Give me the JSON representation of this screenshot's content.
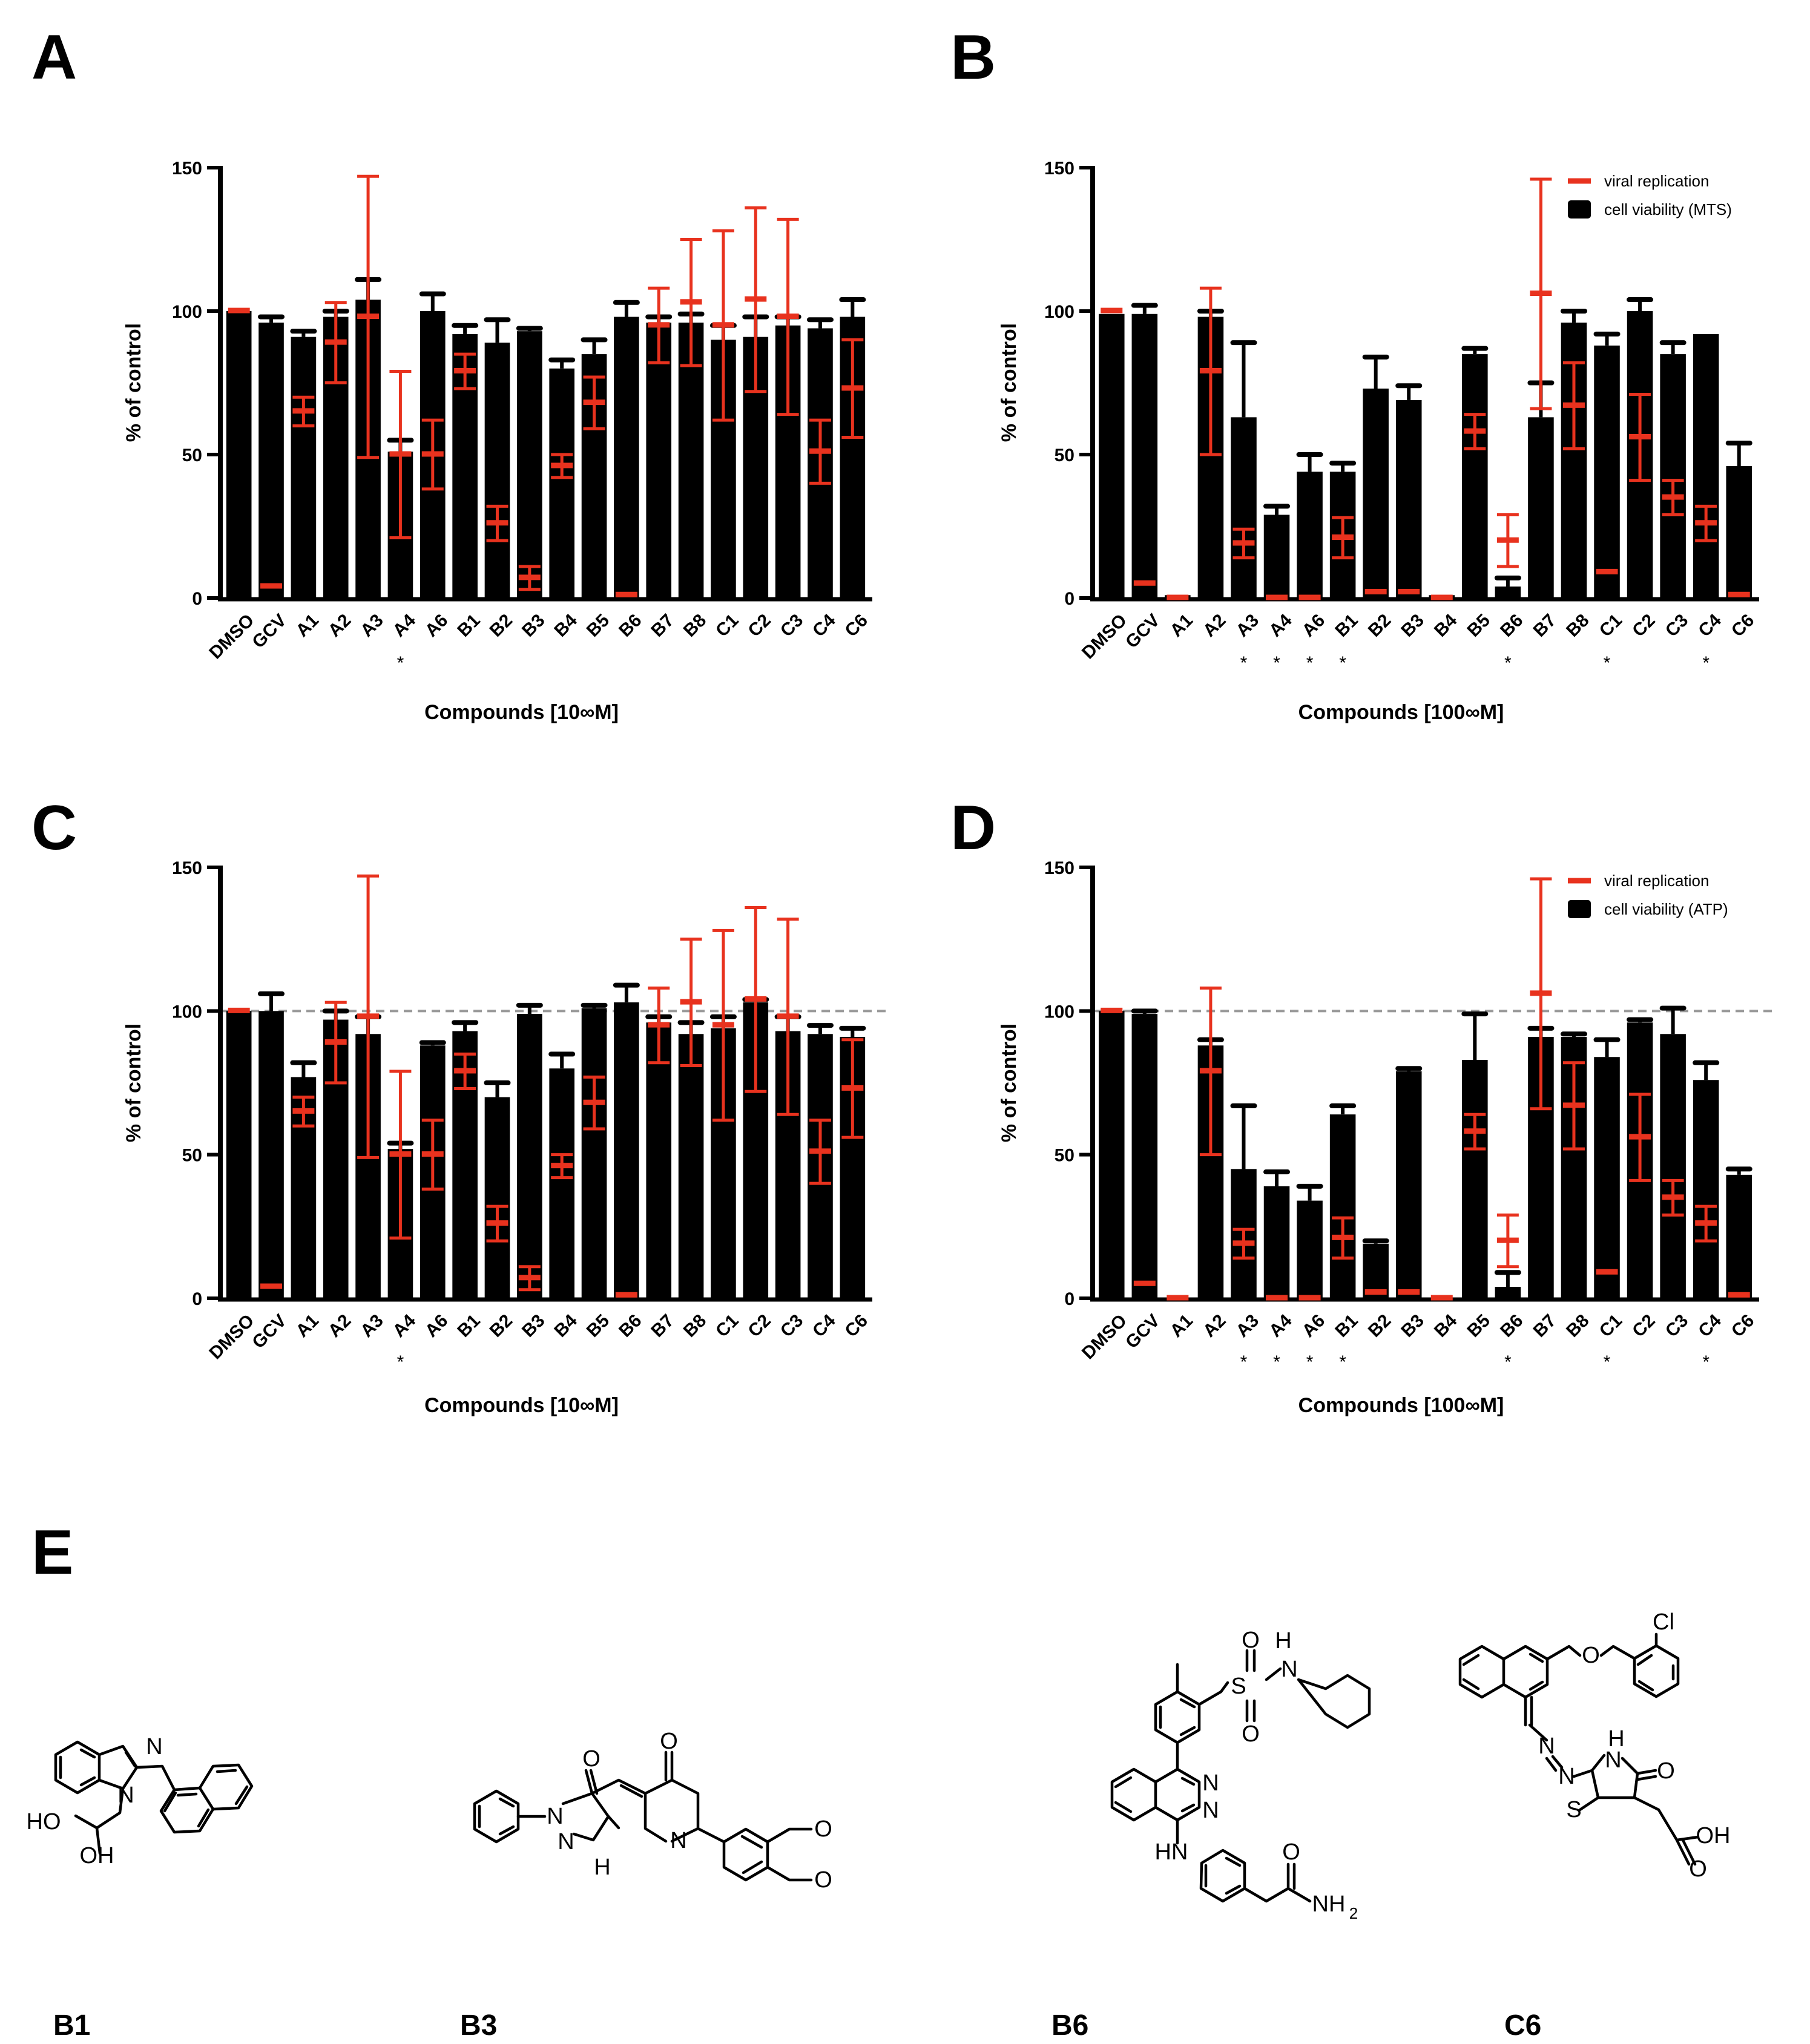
{
  "figure": {
    "panels": {
      "A": "A",
      "B": "B",
      "C": "C",
      "D": "D",
      "E": "E"
    },
    "ylabel": "% of control",
    "xlabel_10": "Compounds [10∞M]",
    "xlabel_100": "Compounds [100∞M]",
    "significance_mark": "*"
  },
  "legend": {
    "viral": "viral replication",
    "mts": "cell viability (MTS)",
    "atp": "cell viability (ATP)"
  },
  "colors": {
    "bar": "#000000",
    "viral": "#e8321e",
    "dashed": "#9a9a9a"
  },
  "chart_data": [
    {
      "panel": "A",
      "type": "bar",
      "title": "",
      "xlabel": "Compounds [10∞M]",
      "ylabel": "% of control",
      "ylim": [
        0,
        150
      ],
      "yticks": [
        0,
        50,
        100,
        150
      ],
      "categories": [
        "DMSO",
        "GCV",
        "A1",
        "A2",
        "A3",
        "A4",
        "A6",
        "B1",
        "B2",
        "B3",
        "B4",
        "B5",
        "B6",
        "B7",
        "B8",
        "C1",
        "C2",
        "C3",
        "C4",
        "C6"
      ],
      "series": [
        {
          "name": "cell viability",
          "values": [
            100,
            96,
            91,
            98,
            104,
            51,
            100,
            92,
            89,
            93,
            80,
            85,
            98,
            96,
            96,
            90,
            91,
            95,
            94,
            98
          ],
          "err": [
            0,
            2,
            2,
            2,
            7,
            4,
            6,
            3,
            8,
            1,
            3,
            5,
            5,
            2,
            3,
            5,
            7,
            3,
            3,
            6
          ]
        },
        {
          "name": "viral replication",
          "values": [
            100,
            4,
            65,
            89,
            98,
            50,
            50,
            79,
            26,
            7,
            46,
            68,
            1,
            95,
            103,
            95,
            104,
            98,
            51,
            73
          ],
          "err": [
            0,
            0,
            5,
            14,
            49,
            29,
            12,
            6,
            6,
            4,
            4,
            9,
            0,
            13,
            22,
            33,
            32,
            34,
            11,
            17
          ]
        }
      ],
      "significant": [
        "A4"
      ],
      "ref_line": null
    },
    {
      "panel": "B",
      "type": "bar",
      "title": "",
      "xlabel": "Compounds [100∞M]",
      "ylabel": "% of control",
      "ylim": [
        0,
        150
      ],
      "yticks": [
        0,
        50,
        100,
        150
      ],
      "categories": [
        "DMSO",
        "GCV",
        "A1",
        "A2",
        "A3",
        "A4",
        "A6",
        "B1",
        "B2",
        "B3",
        "B4",
        "B5",
        "B6",
        "B7",
        "B8",
        "C1",
        "C2",
        "C3",
        "C4",
        "C6"
      ],
      "series": [
        {
          "name": "cell viability (MTS)",
          "values": [
            99,
            99,
            1,
            98,
            63,
            29,
            44,
            44,
            73,
            69,
            1,
            85,
            4,
            63,
            96,
            88,
            100,
            85,
            92,
            46
          ],
          "err": [
            0,
            3,
            0,
            2,
            26,
            3,
            6,
            3,
            11,
            5,
            0,
            2,
            3,
            12,
            4,
            4,
            4,
            4,
            0,
            8
          ]
        },
        {
          "name": "viral replication",
          "values": [
            100,
            5,
            0,
            79,
            19,
            0,
            0,
            21,
            2,
            2,
            0,
            58,
            20,
            106,
            67,
            9,
            56,
            35,
            26,
            1
          ],
          "err": [
            0,
            0,
            0,
            29,
            5,
            0,
            0,
            7,
            0,
            0,
            0,
            6,
            9,
            40,
            15,
            0,
            15,
            6,
            6,
            0
          ]
        }
      ],
      "significant": [
        "A3",
        "A4",
        "A6",
        "B1",
        "B6",
        "C1",
        "C4"
      ],
      "ref_line": null
    },
    {
      "panel": "C",
      "type": "bar",
      "title": "",
      "xlabel": "Compounds [10∞M]",
      "ylabel": "% of control",
      "ylim": [
        0,
        150
      ],
      "yticks": [
        0,
        50,
        100,
        150
      ],
      "categories": [
        "DMSO",
        "GCV",
        "A1",
        "A2",
        "A3",
        "A4",
        "A6",
        "B1",
        "B2",
        "B3",
        "B4",
        "B5",
        "B6",
        "B7",
        "B8",
        "C1",
        "C2",
        "C3",
        "C4",
        "C6"
      ],
      "series": [
        {
          "name": "cell viability",
          "values": [
            100,
            100,
            77,
            97,
            92,
            52,
            88,
            93,
            70,
            99,
            80,
            101,
            103,
            96,
            92,
            94,
            103,
            93,
            92,
            91
          ],
          "err": [
            0,
            6,
            5,
            3,
            6,
            2,
            1,
            3,
            5,
            3,
            5,
            1,
            6,
            2,
            4,
            4,
            1,
            5,
            3,
            3
          ]
        },
        {
          "name": "viral replication",
          "values": [
            100,
            4,
            65,
            89,
            98,
            50,
            50,
            79,
            26,
            7,
            46,
            68,
            1,
            95,
            103,
            95,
            104,
            98,
            51,
            73
          ],
          "err": [
            0,
            0,
            5,
            14,
            49,
            29,
            12,
            6,
            6,
            4,
            4,
            9,
            0,
            13,
            22,
            33,
            32,
            34,
            11,
            17
          ]
        }
      ],
      "significant": [
        "A4"
      ],
      "ref_line": 100
    },
    {
      "panel": "D",
      "type": "bar",
      "title": "",
      "xlabel": "Compounds [100∞M]",
      "ylabel": "% of control",
      "ylim": [
        0,
        150
      ],
      "yticks": [
        0,
        50,
        100,
        150
      ],
      "categories": [
        "DMSO",
        "GCV",
        "A1",
        "A2",
        "A3",
        "A4",
        "A6",
        "B1",
        "B2",
        "B3",
        "B4",
        "B5",
        "B6",
        "B7",
        "B8",
        "C1",
        "C2",
        "C3",
        "C4",
        "C6"
      ],
      "series": [
        {
          "name": "cell viability (ATP)",
          "values": [
            100,
            99,
            0,
            88,
            45,
            39,
            34,
            64,
            19,
            79,
            0,
            83,
            4,
            91,
            91,
            84,
            96,
            92,
            76,
            43
          ],
          "err": [
            0,
            1,
            0,
            2,
            22,
            5,
            5,
            3,
            1,
            1,
            0,
            16,
            5,
            3,
            1,
            6,
            1,
            9,
            6,
            2
          ]
        },
        {
          "name": "viral replication",
          "values": [
            100,
            5,
            0,
            79,
            19,
            0,
            0,
            21,
            2,
            2,
            0,
            58,
            20,
            106,
            67,
            9,
            56,
            35,
            26,
            1
          ],
          "err": [
            0,
            0,
            0,
            29,
            5,
            0,
            0,
            7,
            0,
            0,
            0,
            6,
            9,
            40,
            15,
            0,
            15,
            6,
            6,
            0
          ]
        }
      ],
      "significant": [
        "A3",
        "A4",
        "A6",
        "B1",
        "B6",
        "C1",
        "C4"
      ],
      "ref_line": 100
    }
  ],
  "structures": {
    "B1": {
      "label": "B1",
      "atoms": [
        "N",
        "N",
        "HO",
        "OH"
      ]
    },
    "B3": {
      "label": "B3",
      "atoms": [
        "O",
        "O",
        "N",
        "N",
        "H",
        "N",
        "O",
        "O"
      ]
    },
    "B6": {
      "label": "B6",
      "atoms": [
        "S",
        "O",
        "O",
        "N",
        "H",
        "N",
        "N",
        "HN",
        "O",
        "NH",
        "2"
      ]
    },
    "C6": {
      "label": "C6",
      "atoms": [
        "Cl",
        "O",
        "N",
        "N",
        "H",
        "N",
        "O",
        "S",
        "OH",
        "O"
      ]
    }
  }
}
